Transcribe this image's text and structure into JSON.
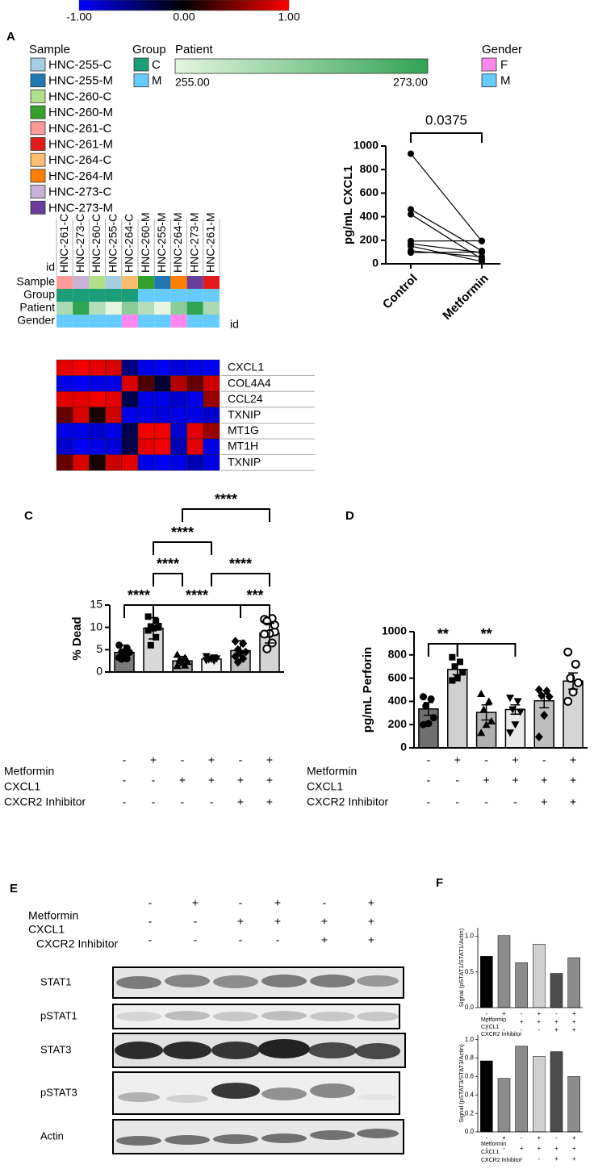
{
  "chart_data": [
    {
      "type": "heatmap",
      "panel": "A",
      "zlim": [
        -1,
        1
      ],
      "zticks": [
        {
          "value": -1,
          "label": "-1.00"
        },
        {
          "value": 0,
          "label": "0.00"
        },
        {
          "value": 1,
          "label": "1.00"
        }
      ],
      "colorscale": [
        "#0000ff",
        "#000000",
        "#ff0000"
      ],
      "legends": [
        {
          "title": "Sample",
          "items": [
            {
              "name": "HNC-255-C",
              "color": "#a6cee3"
            },
            {
              "name": "HNC-255-M",
              "color": "#1f78b4"
            },
            {
              "name": "HNC-260-C",
              "color": "#b2df8a"
            },
            {
              "name": "HNC-260-M",
              "color": "#33a02c"
            },
            {
              "name": "HNC-261-C",
              "color": "#fb9a99"
            },
            {
              "name": "HNC-261-M",
              "color": "#e31a1c"
            },
            {
              "name": "HNC-264-C",
              "color": "#fdbf6f"
            },
            {
              "name": "HNC-264-M",
              "color": "#ff7f00"
            },
            {
              "name": "HNC-273-C",
              "color": "#cab2d6"
            },
            {
              "name": "HNC-273-M",
              "color": "#6a3d9a"
            }
          ]
        },
        {
          "title": "Group",
          "items": [
            {
              "name": "C",
              "color": "#1b9e77"
            },
            {
              "name": "M",
              "color": "#66ccff"
            }
          ]
        },
        {
          "title": "Patient",
          "ticks": [
            {
              "value": 255,
              "label": "255.00"
            },
            {
              "value": 273,
              "label": "273.00"
            }
          ],
          "colors": [
            "#e5f5e0",
            "#31a354"
          ]
        },
        {
          "title": "Gender",
          "items": [
            {
              "name": "F",
              "color": "#ff88ee"
            },
            {
              "name": "M",
              "color": "#66ccff"
            }
          ]
        }
      ],
      "column_key": "id",
      "columns": [
        "HNC-261-C",
        "HNC-273-C",
        "HNC-260-C",
        "HNC-255-C",
        "HNC-264-C",
        "HNC-260-M",
        "HNC-255-M",
        "HNC-264-M",
        "HNC-273-M",
        "HNC-261-M"
      ],
      "annotations": [
        {
          "name": "Sample",
          "values": [
            "HNC-261-C",
            "HNC-273-C",
            "HNC-260-C",
            "HNC-255-C",
            "HNC-264-C",
            "HNC-260-M",
            "HNC-255-M",
            "HNC-264-M",
            "HNC-273-M",
            "HNC-261-M"
          ]
        },
        {
          "name": "Group",
          "values": [
            "C",
            "C",
            "C",
            "C",
            "C",
            "M",
            "M",
            "M",
            "M",
            "M"
          ]
        },
        {
          "name": "Patient",
          "values": [
            261,
            273,
            260,
            255,
            264,
            260,
            255,
            264,
            273,
            261
          ]
        },
        {
          "name": "Gender",
          "values": [
            "M",
            "M",
            "M",
            "M",
            "F",
            "M",
            "M",
            "F",
            "M",
            "M"
          ]
        }
      ],
      "rows": [
        "CXCL1",
        "COL4A4",
        "CCL24",
        "TXNIP",
        "MT1G",
        "MT1H",
        "TXNIP"
      ],
      "values": [
        [
          0.9,
          0.95,
          0.9,
          0.85,
          -0.5,
          -0.9,
          -0.95,
          -0.85,
          -0.9,
          -0.95
        ],
        [
          -0.9,
          -0.95,
          -0.9,
          -0.9,
          0.85,
          0.3,
          -0.2,
          0.7,
          0.4,
          0.8
        ],
        [
          0.9,
          0.9,
          0.95,
          0.9,
          -0.3,
          -0.9,
          -0.9,
          -0.8,
          -0.9,
          0.6
        ],
        [
          0.4,
          0.85,
          0.1,
          0.8,
          -0.9,
          -0.9,
          -0.85,
          -0.9,
          -0.9,
          -0.8
        ],
        [
          -0.9,
          -0.9,
          -0.8,
          -0.9,
          -0.3,
          0.95,
          0.95,
          -0.8,
          0.9,
          0.6
        ],
        [
          -0.8,
          -0.95,
          -0.9,
          -0.85,
          -0.3,
          0.9,
          0.95,
          -0.7,
          0.9,
          -0.9
        ],
        [
          0.4,
          0.85,
          0.1,
          0.8,
          0.9,
          -0.9,
          -0.95,
          -0.9,
          -0.7,
          -0.9
        ]
      ]
    },
    {
      "type": "line",
      "ylabel": "pg/mL CXCL1",
      "categories": [
        "Control",
        "Metformin"
      ],
      "ylim": [
        0,
        1000
      ],
      "yticks": [
        0,
        200,
        400,
        600,
        800,
        1000
      ],
      "color": "#000000",
      "lines": [
        [
          935,
          192
        ],
        [
          462,
          110
        ],
        [
          420,
          40
        ],
        [
          193,
          195
        ],
        [
          170,
          95
        ],
        [
          150,
          20
        ],
        [
          110,
          60
        ],
        [
          95,
          100
        ]
      ],
      "annotation": {
        "text": "0.0375",
        "groups": [
          0,
          1
        ]
      }
    },
    {
      "type": "bar",
      "panel": "C",
      "ylabel": "% Dead",
      "ylim": [
        0,
        15
      ],
      "yticks": [
        0,
        5,
        10,
        15
      ],
      "values": [
        4.4,
        9.8,
        2.5,
        2.9,
        4.8,
        8.7
      ],
      "errors": [
        1.6,
        2.4,
        1.0,
        0.4,
        2.2,
        2.2
      ],
      "colors": [
        "#7a7a7a",
        "#d9d9d9",
        "#a8a8a8",
        "#f0f0f0",
        "#bfbfbf",
        "#d4d4d4"
      ],
      "markers": [
        "circle",
        "square",
        "triangle",
        "triangle-down",
        "diamond",
        "circle-open"
      ],
      "points": [
        [
          6.0,
          5.4,
          4.5,
          4.4,
          4.2,
          3.2,
          3.0,
          2.9
        ],
        [
          12.4,
          11.4,
          10.2,
          10.0,
          9.8,
          9.3,
          7.8,
          6.0,
          10.3
        ],
        [
          3.9,
          3.2,
          2.9,
          2.3,
          2.1,
          1.4,
          1.5,
          2.5
        ],
        [
          3.5,
          3.2,
          3.0,
          3.0,
          2.9,
          2.6,
          2.5,
          2.8
        ],
        [
          6.9,
          6.4,
          5.0,
          4.5,
          4.2,
          3.5,
          3.0,
          2.2
        ],
        [
          11.8,
          12.0,
          11.4,
          9.0,
          8.6,
          8.5,
          6.5,
          5.2,
          10.5
        ]
      ],
      "treatments": [
        {
          "name": "Metformin",
          "values": [
            "-",
            "+",
            "-",
            "+",
            "-",
            "+"
          ]
        },
        {
          "name": "CXCL1",
          "values": [
            "-",
            "-",
            "+",
            "+",
            "+",
            "+"
          ]
        },
        {
          "name": "CXCR2 Inhibitor",
          "values": [
            "-",
            "-",
            "-",
            "-",
            "+",
            "+"
          ]
        }
      ],
      "comparisons": [
        {
          "groups": [
            0,
            1
          ],
          "label": "****"
        },
        {
          "groups": [
            1,
            2
          ],
          "label": "****"
        },
        {
          "groups": [
            1,
            3
          ],
          "label": "****"
        },
        {
          "groups": [
            2,
            5
          ],
          "label": "****"
        },
        {
          "groups": [
            1,
            4
          ],
          "label": "****"
        },
        {
          "groups": [
            3,
            5
          ],
          "label": "****"
        },
        {
          "groups": [
            4,
            5
          ],
          "label": "***"
        }
      ]
    },
    {
      "type": "bar",
      "panel": "D",
      "ylabel": "pg/mL Perforin",
      "ylim": [
        0,
        1000
      ],
      "yticks": [
        0,
        200,
        400,
        600,
        800,
        1000
      ],
      "values": [
        335,
        675,
        305,
        330,
        405,
        575
      ],
      "errors": [
        55,
        45,
        65,
        40,
        60,
        70
      ],
      "colors": [
        "#707070",
        "#cfcfcf",
        "#b0b0b0",
        "#e9e9e9",
        "#bdbdbd",
        "#d6d6d6"
      ],
      "markers": [
        "circle",
        "square",
        "triangle",
        "triangle-down",
        "diamond",
        "circle-open"
      ],
      "points": [
        [
          440,
          420,
          360,
          260,
          210,
          200
        ],
        [
          780,
          740,
          700,
          650,
          600,
          580
        ],
        [
          465,
          400,
          330,
          230,
          200,
          130
        ],
        [
          430,
          400,
          330,
          310,
          200,
          130
        ],
        [
          500,
          490,
          450,
          440,
          280,
          95
        ],
        [
          825,
          720,
          600,
          560,
          480,
          400
        ]
      ],
      "treatments": [
        {
          "name": "Metformin",
          "values": [
            "-",
            "+",
            "-",
            "+",
            "-",
            "+"
          ]
        },
        {
          "name": "CXCL1",
          "values": [
            "-",
            "-",
            "+",
            "+",
            "+",
            "+"
          ]
        },
        {
          "name": "CXCR2 Inhibitor",
          "values": [
            "-",
            "-",
            "-",
            "-",
            "+",
            "+"
          ]
        }
      ],
      "comparisons": [
        {
          "groups": [
            0,
            1
          ],
          "label": "**"
        },
        {
          "groups": [
            1,
            3
          ],
          "label": "**"
        }
      ]
    },
    {
      "type": "bar",
      "panel": "F",
      "ylabel": "Signal (pSTAT1/STAT1/Actin)",
      "ylim": [
        0,
        1.12
      ],
      "yticks": [
        {
          "value": 0,
          "label": "0.0"
        },
        0.5,
        {
          "value": 1,
          "label": "1.0"
        }
      ],
      "values": [
        0.72,
        1.01,
        0.63,
        0.89,
        0.48,
        0.7
      ],
      "colors": [
        "#000000",
        "#8c8c8c",
        "#8c8c8c",
        "#d0d0d0",
        "#4d4d4d",
        "#8c8c8c"
      ],
      "treatments": [
        {
          "name": "Metformin",
          "values": [
            "-",
            "+",
            "-",
            "+",
            "-",
            "+"
          ]
        },
        {
          "name": "CXCL1",
          "values": [
            "-",
            "-",
            "+",
            "+",
            "+",
            "+"
          ]
        },
        {
          "name": "CXCR2 Inhibitor",
          "values": [
            "-",
            "-",
            "-",
            "-",
            "+",
            "+"
          ]
        }
      ]
    },
    {
      "type": "bar",
      "ylabel": "Signal (pSTAT3/STAT3/Actin)",
      "ylim": [
        0,
        1.05
      ],
      "yticks": [
        {
          "value": 0,
          "label": "0.0"
        },
        0.2,
        0.4,
        0.6,
        0.8,
        {
          "value": 1,
          "label": "1.0"
        }
      ],
      "values": [
        0.77,
        0.58,
        0.93,
        0.82,
        0.87,
        0.6
      ],
      "colors": [
        "#000000",
        "#8c8c8c",
        "#8c8c8c",
        "#d0d0d0",
        "#4d4d4d",
        "#8c8c8c"
      ],
      "treatments": [
        {
          "name": "Metformin",
          "values": [
            "-",
            "+",
            "-",
            "+",
            "-",
            "+"
          ]
        },
        {
          "name": "CXCL1",
          "values": [
            "-",
            "-",
            "+",
            "+",
            "+",
            "+"
          ]
        },
        {
          "name": "CXCR2 Inhibitor",
          "values": [
            "-",
            "-",
            "-",
            "-",
            "+",
            "+"
          ]
        }
      ]
    }
  ],
  "blot": {
    "panel": "E",
    "treatments": [
      {
        "name": "Metformin",
        "values": [
          "-",
          "+",
          "-",
          "+",
          "-",
          "+"
        ]
      },
      {
        "name": "CXCL1",
        "values": [
          "-",
          "-",
          "+",
          "+",
          "+",
          "+"
        ]
      },
      {
        "name": "CXCR2 Inhibitor",
        "values": [
          "-",
          "-",
          "-",
          "-",
          "+",
          "+"
        ]
      }
    ],
    "bands": [
      "STAT1",
      "pSTAT1",
      "STAT3",
      "pSTAT3",
      "Actin"
    ]
  }
}
